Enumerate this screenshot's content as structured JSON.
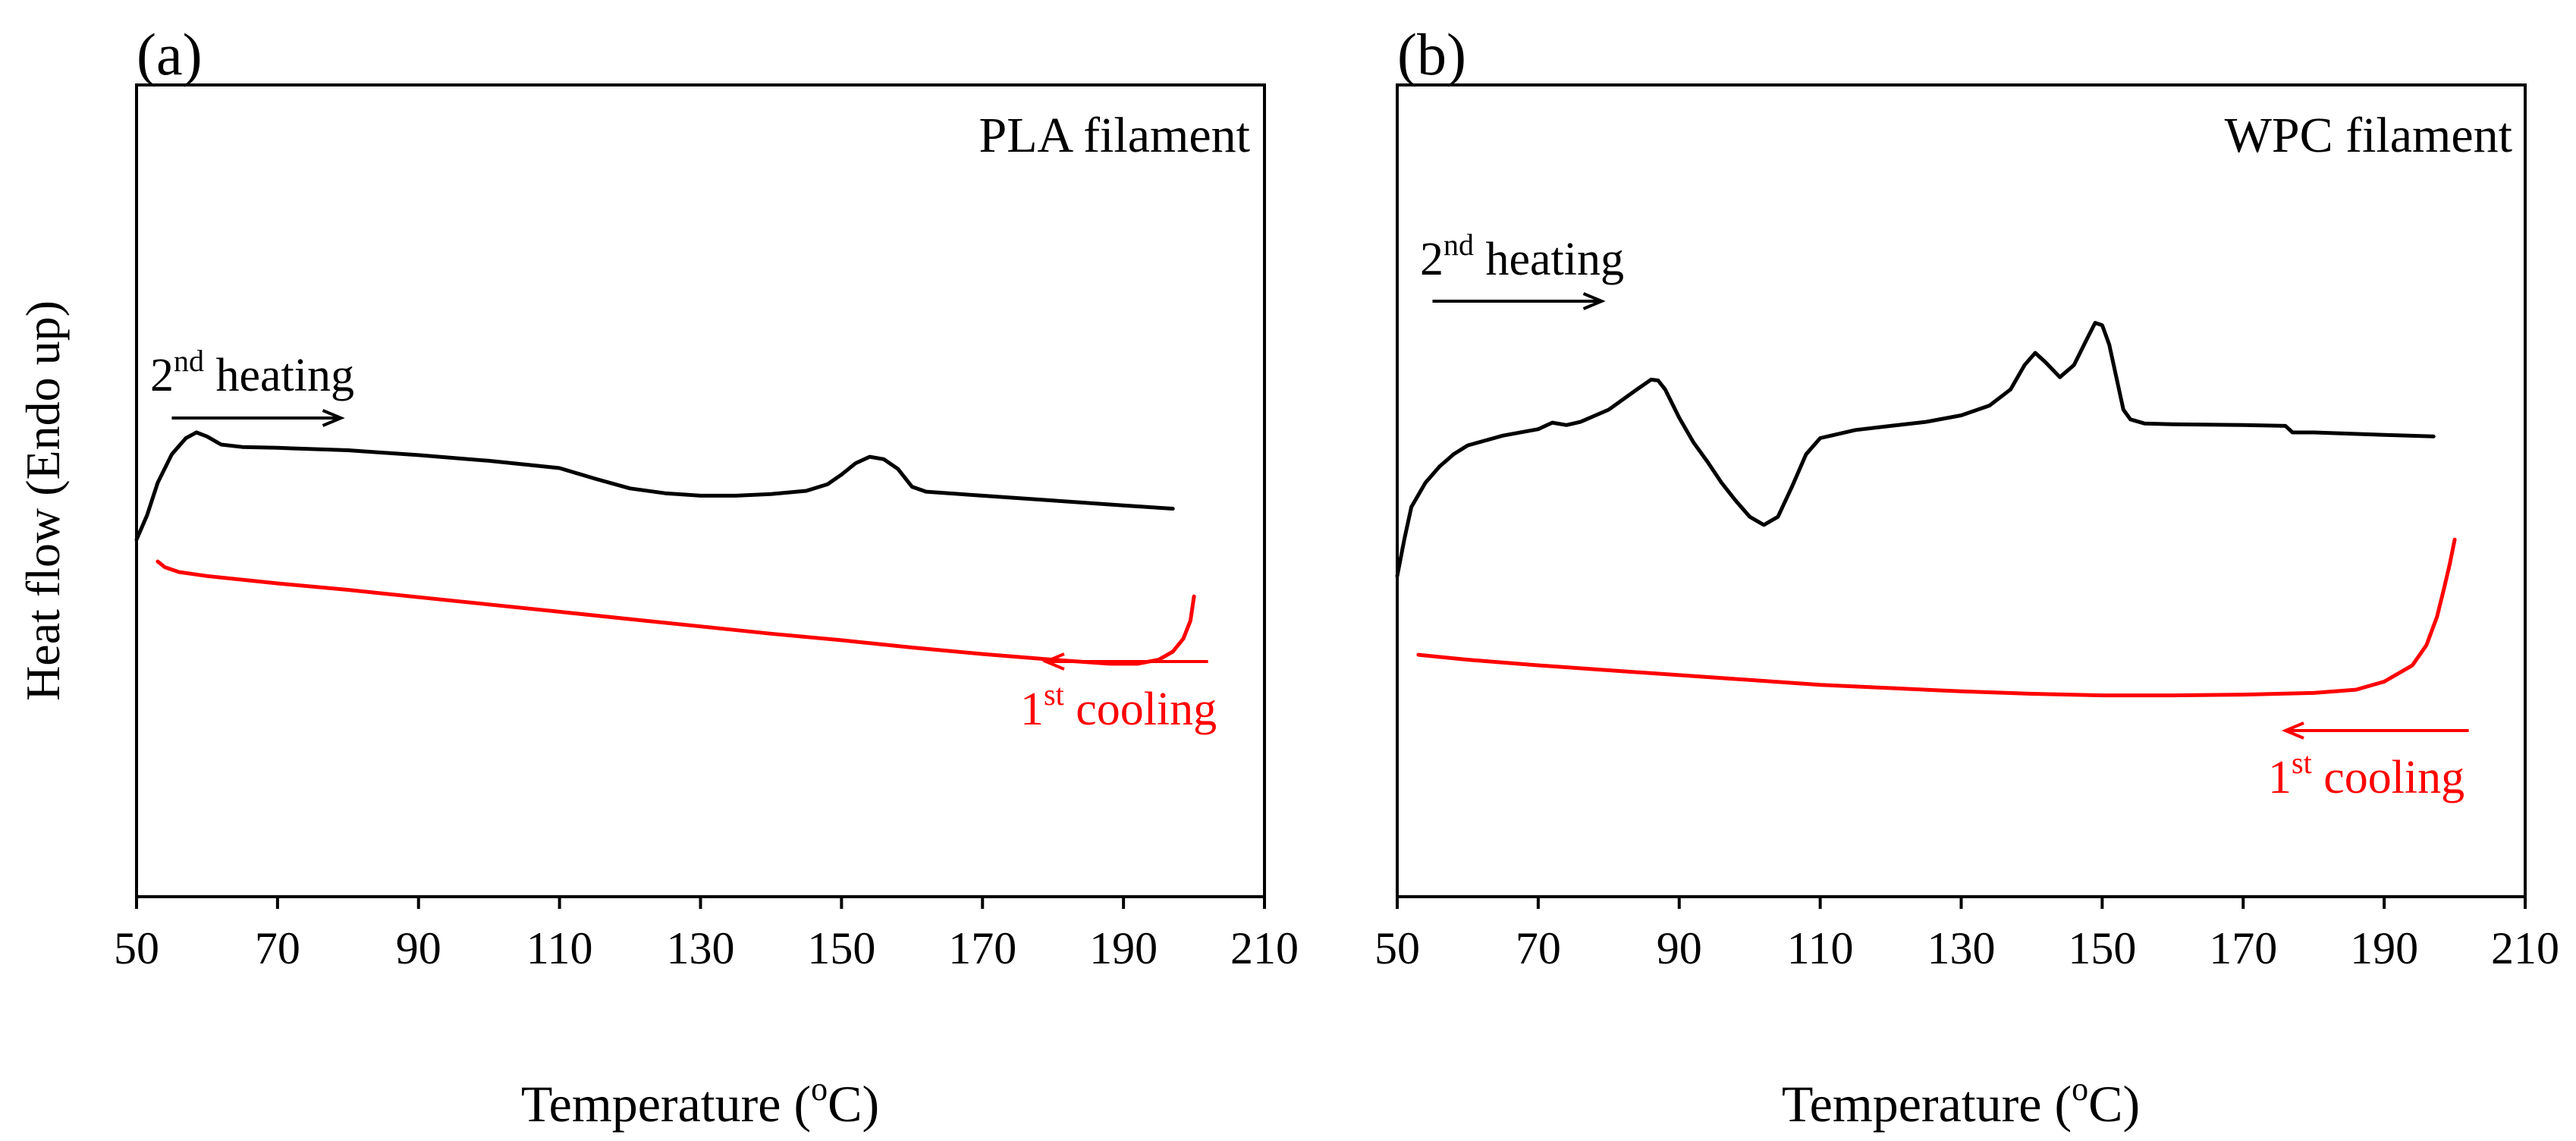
{
  "figure": {
    "ylabel": "Heat flow (Endo up)",
    "colors": {
      "heating": "#000000",
      "cooling": "#ff0000",
      "axis": "#000000",
      "background": "#ffffff"
    }
  },
  "chart_data": [
    {
      "type": "line",
      "panel_label": "(a)",
      "title": "PLA filament",
      "xlabel": "Temperature (°C)",
      "xlabel_parts": {
        "prefix": "Temperature (",
        "sup": "o",
        "suffix": "C)"
      },
      "ylabel": "Heat flow (Endo up)",
      "xlim": [
        50,
        210
      ],
      "ylim": [
        0,
        1
      ],
      "y_ticks_shown": false,
      "grid": false,
      "xticks": [
        50,
        70,
        90,
        110,
        130,
        150,
        170,
        190,
        210
      ],
      "xtick_labels": [
        "50",
        "70",
        "90",
        "110",
        "130",
        "150",
        "170",
        "190",
        "210"
      ],
      "series": [
        {
          "name": "2nd heating",
          "color": "#000000",
          "points": [
            [
              50,
              0.44
            ],
            [
              51.5,
              0.47
            ],
            [
              53,
              0.51
            ],
            [
              55,
              0.545
            ],
            [
              57,
              0.565
            ],
            [
              58.5,
              0.572
            ],
            [
              60,
              0.567
            ],
            [
              62,
              0.557
            ],
            [
              65,
              0.554
            ],
            [
              70,
              0.553
            ],
            [
              80,
              0.55
            ],
            [
              90,
              0.544
            ],
            [
              100,
              0.537
            ],
            [
              110,
              0.528
            ],
            [
              115,
              0.515
            ],
            [
              120,
              0.503
            ],
            [
              125,
              0.497
            ],
            [
              130,
              0.494
            ],
            [
              135,
              0.494
            ],
            [
              140,
              0.496
            ],
            [
              145,
              0.5
            ],
            [
              148,
              0.508
            ],
            [
              150,
              0.52
            ],
            [
              152,
              0.534
            ],
            [
              154,
              0.542
            ],
            [
              156,
              0.539
            ],
            [
              158,
              0.527
            ],
            [
              160,
              0.505
            ],
            [
              162,
              0.499
            ],
            [
              170,
              0.494
            ],
            [
              180,
              0.488
            ],
            [
              190,
              0.482
            ],
            [
              197,
              0.478
            ]
          ]
        },
        {
          "name": "1st cooling",
          "color": "#ff0000",
          "points": [
            [
              53,
              0.413
            ],
            [
              54,
              0.406
            ],
            [
              56,
              0.4
            ],
            [
              60,
              0.395
            ],
            [
              70,
              0.386
            ],
            [
              80,
              0.378
            ],
            [
              90,
              0.369
            ],
            [
              100,
              0.36
            ],
            [
              110,
              0.351
            ],
            [
              120,
              0.342
            ],
            [
              130,
              0.333
            ],
            [
              140,
              0.324
            ],
            [
              150,
              0.316
            ],
            [
              160,
              0.307
            ],
            [
              170,
              0.299
            ],
            [
              180,
              0.292
            ],
            [
              188,
              0.287
            ],
            [
              192,
              0.287
            ],
            [
              195,
              0.292
            ],
            [
              197,
              0.302
            ],
            [
              198.5,
              0.318
            ],
            [
              199.5,
              0.34
            ],
            [
              200,
              0.37
            ]
          ]
        }
      ],
      "annotations": {
        "heating": {
          "base": "2",
          "sup": "nd",
          "text": " heating",
          "arrow_from": 55,
          "arrow_to": 79
        },
        "cooling": {
          "base": "1",
          "sup": "st",
          "text": " cooling",
          "arrow_from": 202,
          "arrow_to": 179
        }
      }
    },
    {
      "type": "line",
      "panel_label": "(b)",
      "title": "WPC filament",
      "xlabel": "Temperature (°C)",
      "xlabel_parts": {
        "prefix": "Temperature (",
        "sup": "o",
        "suffix": "C)"
      },
      "ylabel": "Heat flow (Endo up)",
      "xlim": [
        50,
        210
      ],
      "ylim": [
        0,
        1
      ],
      "y_ticks_shown": false,
      "grid": false,
      "xticks": [
        50,
        70,
        90,
        110,
        130,
        150,
        170,
        190,
        210
      ],
      "xtick_labels": [
        "50",
        "70",
        "90",
        "110",
        "130",
        "150",
        "170",
        "190",
        "210"
      ],
      "series": [
        {
          "name": "2nd heating",
          "color": "#000000",
          "points": [
            [
              50,
              0.395
            ],
            [
              51,
              0.44
            ],
            [
              52,
              0.48
            ],
            [
              54,
              0.51
            ],
            [
              56,
              0.53
            ],
            [
              58,
              0.545
            ],
            [
              60,
              0.556
            ],
            [
              65,
              0.568
            ],
            [
              70,
              0.576
            ],
            [
              72,
              0.584
            ],
            [
              74,
              0.581
            ],
            [
              76,
              0.585
            ],
            [
              80,
              0.6
            ],
            [
              84,
              0.625
            ],
            [
              86,
              0.637
            ],
            [
              87,
              0.636
            ],
            [
              88,
              0.625
            ],
            [
              90,
              0.59
            ],
            [
              92,
              0.56
            ],
            [
              94,
              0.536
            ],
            [
              96,
              0.51
            ],
            [
              98,
              0.488
            ],
            [
              100,
              0.468
            ],
            [
              102,
              0.458
            ],
            [
              104,
              0.468
            ],
            [
              106,
              0.505
            ],
            [
              108,
              0.545
            ],
            [
              110,
              0.565
            ],
            [
              115,
              0.575
            ],
            [
              120,
              0.58
            ],
            [
              125,
              0.585
            ],
            [
              130,
              0.593
            ],
            [
              134,
              0.605
            ],
            [
              137,
              0.625
            ],
            [
              139,
              0.655
            ],
            [
              140.5,
              0.67
            ],
            [
              142,
              0.658
            ],
            [
              144,
              0.64
            ],
            [
              146,
              0.655
            ],
            [
              148,
              0.69
            ],
            [
              149,
              0.707
            ],
            [
              150,
              0.704
            ],
            [
              151,
              0.68
            ],
            [
              152,
              0.64
            ],
            [
              153,
              0.6
            ],
            [
              154,
              0.588
            ],
            [
              156,
              0.583
            ],
            [
              160,
              0.582
            ],
            [
              170,
              0.581
            ],
            [
              176,
              0.58
            ],
            [
              177,
              0.572
            ],
            [
              180,
              0.572
            ],
            [
              190,
              0.569
            ],
            [
              197,
              0.567
            ]
          ]
        },
        {
          "name": "1st cooling",
          "color": "#ff0000",
          "points": [
            [
              53,
              0.298
            ],
            [
              60,
              0.292
            ],
            [
              70,
              0.285
            ],
            [
              80,
              0.279
            ],
            [
              90,
              0.273
            ],
            [
              100,
              0.267
            ],
            [
              110,
              0.261
            ],
            [
              120,
              0.257
            ],
            [
              130,
              0.253
            ],
            [
              140,
              0.25
            ],
            [
              150,
              0.248
            ],
            [
              160,
              0.248
            ],
            [
              170,
              0.249
            ],
            [
              180,
              0.251
            ],
            [
              186,
              0.255
            ],
            [
              190,
              0.265
            ],
            [
              194,
              0.285
            ],
            [
              196,
              0.31
            ],
            [
              197.5,
              0.345
            ],
            [
              198.5,
              0.38
            ],
            [
              199.3,
              0.41
            ],
            [
              200,
              0.44
            ]
          ]
        }
      ],
      "annotations": {
        "heating": {
          "base": "2",
          "sup": "nd",
          "text": " heating",
          "arrow_from": 55,
          "arrow_to": 79
        },
        "cooling": {
          "base": "1",
          "sup": "st",
          "text": " cooling",
          "arrow_from": 202,
          "arrow_to": 176
        }
      }
    }
  ]
}
